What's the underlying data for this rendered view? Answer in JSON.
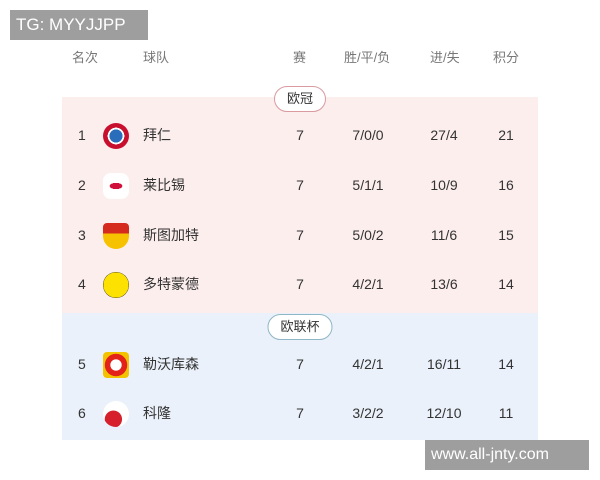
{
  "watermarks": {
    "top": "TG: MYYJJPP",
    "bottom": "www.all-jnty.com"
  },
  "headers": {
    "rank": "名次",
    "team": "球队",
    "played": "赛",
    "wdl": "胜/平/负",
    "goals": "进/失",
    "points": "积分"
  },
  "sections": [
    {
      "label": "欧冠",
      "color": "#fdeeee",
      "rows": [
        {
          "rank": "1",
          "team": "拜仁",
          "icon": "bayern-logo",
          "played": "7",
          "wdl": "7/0/0",
          "goals": "27/4",
          "points": "21"
        },
        {
          "rank": "2",
          "team": "莱比锡",
          "icon": "leipzig-logo",
          "played": "7",
          "wdl": "5/1/1",
          "goals": "10/9",
          "points": "16"
        },
        {
          "rank": "3",
          "team": "斯图加特",
          "icon": "stuttgart-logo",
          "played": "7",
          "wdl": "5/0/2",
          "goals": "11/6",
          "points": "15"
        },
        {
          "rank": "4",
          "team": "多特蒙德",
          "icon": "dortmund-logo",
          "played": "7",
          "wdl": "4/2/1",
          "goals": "13/6",
          "points": "14"
        }
      ]
    },
    {
      "label": "欧联杯",
      "color": "#eaf1fa",
      "rows": [
        {
          "rank": "5",
          "team": "勒沃库森",
          "icon": "leverkusen-logo",
          "played": "7",
          "wdl": "4/2/1",
          "goals": "16/11",
          "points": "14"
        },
        {
          "rank": "6",
          "team": "科隆",
          "icon": "koln-logo",
          "played": "7",
          "wdl": "3/2/2",
          "goals": "12/10",
          "points": "11"
        }
      ]
    }
  ]
}
